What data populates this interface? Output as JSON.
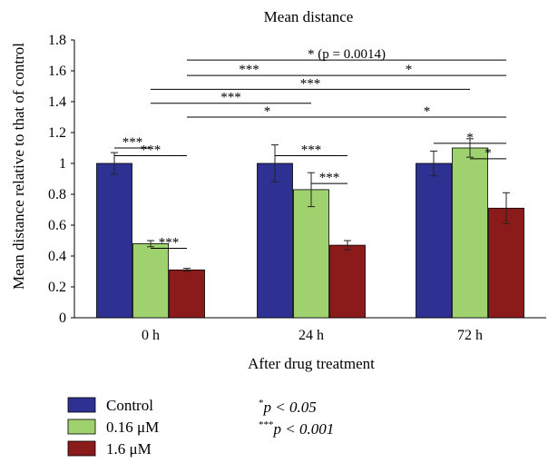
{
  "chart_data": {
    "type": "bar",
    "title": "Mean distance",
    "xlabel": "After drug treatment",
    "ylabel": "Mean distance relative to that of control",
    "ylim": [
      0,
      1.8
    ],
    "yticks": [
      0,
      0.2,
      0.4,
      0.6,
      0.8,
      1,
      1.2,
      1.4,
      1.6,
      1.8
    ],
    "ytick_labels": [
      "0",
      "0.2",
      "0.4",
      "0.6",
      "0.8",
      "1",
      "1.2",
      "1.4",
      "1.6",
      "1.8"
    ],
    "categories": [
      "0 h",
      "24 h",
      "72 h"
    ],
    "grid": false,
    "legend_position": "bottom-left",
    "series": [
      {
        "name": "Control",
        "color": "#2e3192",
        "values": [
          1.0,
          1.0,
          1.0
        ],
        "errors": [
          0.07,
          0.12,
          0.08
        ]
      },
      {
        "name": "0.16 μM",
        "color": "#9fd26e",
        "values": [
          0.48,
          0.83,
          1.1
        ],
        "errors": [
          0.02,
          0.11,
          0.06
        ]
      },
      {
        "name": "1.6 μM",
        "color": "#8b1a1a",
        "values": [
          0.31,
          0.47,
          0.71
        ],
        "errors": [
          0.01,
          0.03,
          0.1
        ]
      }
    ],
    "significance": [
      {
        "from": [
          0,
          0
        ],
        "to": [
          0,
          1
        ],
        "y": 1.1,
        "label": "***"
      },
      {
        "from": [
          0,
          0
        ],
        "to": [
          0,
          2
        ],
        "y": 1.05,
        "label": "***"
      },
      {
        "from": [
          0,
          1
        ],
        "to": [
          0,
          2
        ],
        "y": 0.45,
        "label": "***"
      },
      {
        "from": [
          1,
          0
        ],
        "to": [
          1,
          2
        ],
        "y": 1.05,
        "label": "***"
      },
      {
        "from": [
          1,
          1
        ],
        "to": [
          1,
          2
        ],
        "y": 0.87,
        "label": "***"
      },
      {
        "from": [
          2,
          0
        ],
        "to": [
          2,
          2
        ],
        "y": 1.13,
        "label": "*"
      },
      {
        "from": [
          2,
          1
        ],
        "to": [
          2,
          2
        ],
        "y": 1.03,
        "label": "*"
      },
      {
        "from": [
          0,
          2
        ],
        "to": [
          1,
          2
        ],
        "y": 1.3,
        "label": "*"
      },
      {
        "from": [
          1,
          2
        ],
        "to": [
          2,
          2
        ],
        "y": 1.3,
        "label": "*"
      },
      {
        "from": [
          0,
          1
        ],
        "to": [
          1,
          1
        ],
        "y": 1.39,
        "label": "***"
      },
      {
        "from": [
          0,
          1
        ],
        "to": [
          2,
          1
        ],
        "y": 1.48,
        "label": "***"
      },
      {
        "from": [
          0,
          2
        ],
        "to": [
          1,
          1
        ],
        "y": 1.57,
        "label": "***"
      },
      {
        "from": [
          1,
          1
        ],
        "to": [
          2,
          2
        ],
        "y": 1.57,
        "label": "*"
      },
      {
        "from": [
          0,
          2
        ],
        "to": [
          2,
          2
        ],
        "y": 1.67,
        "label": "* (p = 0.0014)"
      }
    ],
    "significance_legend": [
      {
        "symbol": "*",
        "text": "p < 0.05"
      },
      {
        "symbol": "***",
        "text": "p < 0.001"
      }
    ]
  }
}
